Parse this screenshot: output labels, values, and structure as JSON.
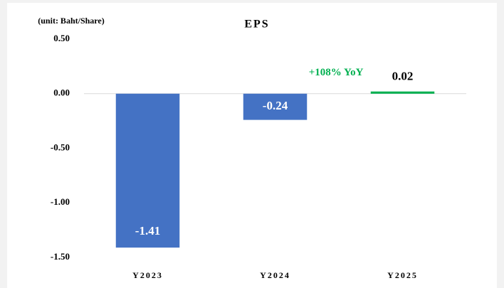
{
  "chart_data": {
    "type": "bar",
    "title": "EPS",
    "unit_label": "(unit: Baht/Share)",
    "categories": [
      "Y2023",
      "Y2024",
      "Y2025"
    ],
    "values": [
      -1.41,
      -0.24,
      0.02
    ],
    "colors": [
      "#4472c4",
      "#4472c4",
      "#00b050"
    ],
    "annotations": [
      {
        "text": "+108% YoY",
        "category": 2,
        "color": "#00b050"
      }
    ],
    "ylim": [
      -1.5,
      0.5
    ],
    "yticks": [
      {
        "value": 0.5,
        "label": "0.50"
      },
      {
        "value": 0,
        "label": "0.00"
      },
      {
        "value": -0.5,
        "label": "-0.50"
      },
      {
        "value": -1,
        "label": "-1.00"
      },
      {
        "value": -1.5,
        "label": "-1.50"
      }
    ],
    "grid": false
  }
}
